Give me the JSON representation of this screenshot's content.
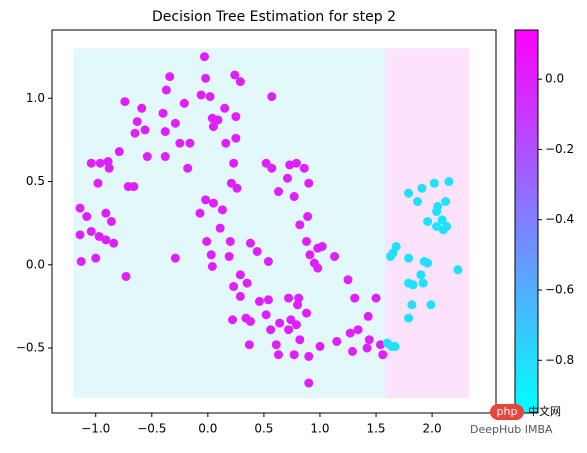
{
  "chart_data": {
    "type": "scatter",
    "title": "Decision Tree Estimation for step 2",
    "xlim": [
      -1.39,
      2.57
    ],
    "ylim": [
      -0.89,
      1.41
    ],
    "xticks": [
      {
        "value": -1.0,
        "label": "−1.0"
      },
      {
        "value": -0.5,
        "label": "−0.5"
      },
      {
        "value": 0,
        "label": "0.0"
      },
      {
        "value": 0.5,
        "label": "0.5"
      },
      {
        "value": 1.0,
        "label": "1.0"
      },
      {
        "value": 1.5,
        "label": "1.5"
      },
      {
        "value": 2.0,
        "label": "2.0"
      }
    ],
    "yticks": [
      {
        "value": -0.5,
        "label": "−0.5"
      },
      {
        "value": 0,
        "label": "0.0"
      },
      {
        "value": 0.5,
        "label": "0.5"
      },
      {
        "value": 1.0,
        "label": "1.0"
      }
    ],
    "regions": [
      {
        "xlim": [
          -1.2,
          1.58
        ],
        "ylim": [
          -0.8,
          1.3
        ],
        "color": "#e3f8fb"
      },
      {
        "xlim": [
          1.58,
          2.33
        ],
        "ylim": [
          -0.8,
          1.3
        ],
        "color": "#fce3fb"
      }
    ],
    "series": [
      {
        "color": "#e01fff",
        "x": [
          -0.03,
          -0.34,
          -0.02,
          0.24,
          0.29,
          -0.06,
          0.02,
          -0.21,
          -0.74,
          0.57,
          -0.37,
          -0.59,
          -0.63,
          -0.56,
          -0.4,
          -0.29,
          0.04,
          0.09,
          0.15,
          0.25,
          0.25,
          0.05,
          -0.65,
          -0.54,
          -0.38,
          -0.25,
          -0.16,
          0.16,
          -0.38,
          -0.79,
          -0.88,
          -1.04,
          -0.96,
          -0.89,
          -0.98,
          -0.71,
          -0.66,
          -0.18,
          0.23,
          0.52,
          0.57,
          0.73,
          0.79,
          0.86,
          0.9,
          0.77,
          0.63,
          0.71,
          0.21,
          0.26,
          -0.02,
          0.05,
          0.13,
          -0.07,
          -0.91,
          -1.08,
          -1.14,
          -1.14,
          -1.04,
          -0.86,
          -0.91,
          -0.97,
          -1.13,
          -1.0,
          -0.84,
          -0.73,
          -0.29,
          -0.01,
          0.11,
          0.03,
          0.04,
          0.19,
          0.2,
          0.89,
          0.82,
          0.88,
          0.91,
          0.98,
          1.02,
          0.95,
          0.98,
          1.13,
          0.29,
          0.23,
          0.35,
          0.29,
          0.46,
          0.54,
          0.72,
          0.81,
          0.8,
          0.88,
          0.74,
          0.64,
          0.52,
          0.38,
          0.22,
          0.34,
          0.56,
          0.72,
          0.79,
          0.37,
          0.61,
          0.82,
          0.63,
          0.77,
          0.9,
          1.0,
          1.15,
          1.27,
          1.34,
          1.31,
          1.25,
          1.5,
          1.43,
          1.29,
          1.44,
          1.42,
          1.56,
          1.54,
          0.9,
          0.38,
          0.44,
          0.54
        ],
        "values": [
          1.25,
          1.13,
          1.12,
          1.14,
          1.1,
          1.02,
          1.01,
          0.97,
          0.98,
          1.01,
          1.05,
          0.94,
          0.86,
          0.81,
          0.91,
          0.85,
          0.88,
          0.87,
          0.94,
          0.89,
          0.76,
          0.83,
          0.79,
          0.65,
          0.8,
          0.73,
          0.73,
          0.73,
          0.65,
          0.68,
          0.58,
          0.61,
          0.61,
          0.62,
          0.49,
          0.47,
          0.47,
          0.58,
          0.61,
          0.61,
          0.58,
          0.6,
          0.61,
          0.58,
          0.49,
          0.41,
          0.44,
          0.52,
          0.49,
          0.46,
          0.39,
          0.37,
          0.33,
          0.31,
          0.31,
          0.29,
          0.34,
          0.18,
          0.2,
          0.26,
          0.15,
          0.17,
          0.02,
          0.04,
          0.13,
          -0.07,
          0.04,
          0.14,
          0.22,
          0.06,
          -0.01,
          0.05,
          0.14,
          0.29,
          0.24,
          0.14,
          0.06,
          0.1,
          0.11,
          0.01,
          -0.02,
          0.05,
          -0.06,
          -0.13,
          -0.11,
          -0.19,
          -0.22,
          -0.21,
          -0.2,
          -0.2,
          -0.24,
          -0.29,
          -0.33,
          -0.35,
          -0.3,
          -0.34,
          -0.33,
          -0.32,
          -0.39,
          -0.39,
          -0.36,
          -0.48,
          -0.48,
          -0.45,
          -0.54,
          -0.54,
          -0.55,
          -0.49,
          -0.46,
          -0.41,
          -0.39,
          -0.2,
          -0.09,
          -0.2,
          -0.31,
          -0.52,
          -0.45,
          -0.5,
          -0.54,
          -0.48,
          -0.71,
          0.13,
          0.08,
          0.02
        ]
      },
      {
        "color": "#1fe0ff",
        "x": [
          1.65,
          1.63,
          1.68,
          1.79,
          1.87,
          1.91,
          2.02,
          2.15,
          1.83,
          1.79,
          1.92,
          1.9,
          1.82,
          1.79,
          1.6,
          1.64,
          1.67,
          1.79,
          1.93,
          1.96,
          1.99,
          2.04,
          2.05,
          2.04,
          2.1,
          2.13,
          2.09,
          1.96,
          2.23,
          2.12
        ],
        "values": [
          0.07,
          0.05,
          0.11,
          0.43,
          0.38,
          0.46,
          0.49,
          0.5,
          -0.12,
          -0.11,
          -0.11,
          -0.06,
          -0.24,
          -0.32,
          -0.47,
          -0.49,
          -0.49,
          0.04,
          0.02,
          0.01,
          -0.24,
          0.32,
          0.35,
          0.23,
          0.21,
          0.23,
          0.27,
          0.26,
          -0.03,
          0.38
        ]
      }
    ],
    "colorbar": {
      "lim": [
        -0.95,
        0.14
      ],
      "colors": [
        "#00ffff",
        "#ff00ff"
      ],
      "ticks": [
        {
          "value": -0.8,
          "label": "−0.8"
        },
        {
          "value": -0.6,
          "label": "−0.6"
        },
        {
          "value": -0.4,
          "label": "−0.4"
        },
        {
          "value": -0.2,
          "label": "−0.2"
        },
        {
          "value": 0,
          "label": "0.0"
        }
      ]
    },
    "watermark": [
      "php",
      "中文网",
      "DeepHub IMBA"
    ]
  }
}
